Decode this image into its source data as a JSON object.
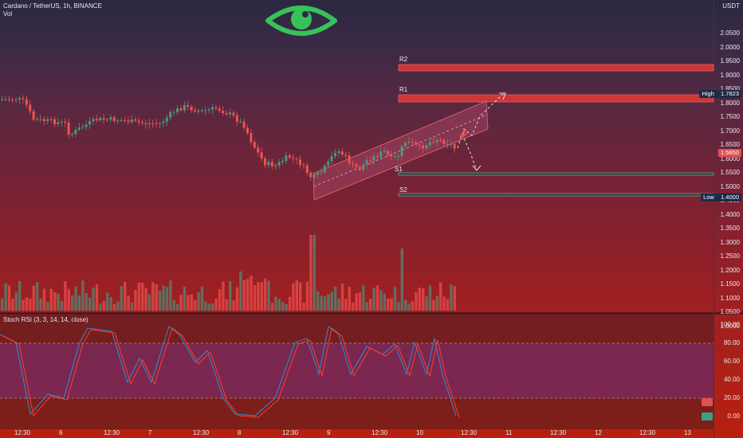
{
  "header": {
    "title": "Cardano / TetherUS, 1h, BINANCE",
    "vol_label": "Vol"
  },
  "price_axis": {
    "currency": "USDT",
    "ticks": [
      "2.0500",
      "2.0000",
      "1.9500",
      "1.9000",
      "1.8500",
      "1.8000",
      "1.7500",
      "1.7000",
      "1.6500",
      "1.6000",
      "1.5500",
      "1.5000",
      "1.4500",
      "1.4000",
      "1.3500",
      "1.3000",
      "1.2500",
      "1.2000",
      "1.1500",
      "1.1000",
      "1.0500",
      "1.0000"
    ],
    "high_tag": {
      "label": "High",
      "value": "1.7823"
    },
    "low_tag": {
      "label": "Low",
      "value": "1.4000"
    },
    "current_tag": "1.5650"
  },
  "levels": {
    "r2": "R2",
    "r1": "R1",
    "s1": "S1",
    "s2": "S2"
  },
  "stoch": {
    "title": "Stoch RSI (3, 3, 14, 14, close)",
    "ticks": [
      "100.00",
      "80.00",
      "60.00",
      "40.00",
      "20.00",
      "0.00"
    ],
    "k_tag": "",
    "d_tag": ""
  },
  "time_axis": [
    "12:30",
    "6",
    "12:30",
    "7",
    "12:30",
    "8",
    "12:30",
    "9",
    "12:30",
    "10",
    "12:30",
    "11",
    "12:30",
    "12",
    "12:30",
    "13"
  ],
  "colors": {
    "up": "#4a9a7a",
    "down": "#ef5350",
    "k_line": "#2a8fd0",
    "d_line": "#ff3b30",
    "eye": "#38c25a"
  },
  "icon": "eye-logo-icon"
}
